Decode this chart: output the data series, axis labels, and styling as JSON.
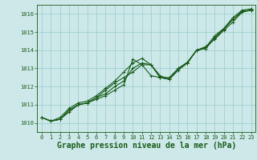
{
  "title": "Graphe pression niveau de la mer (hPa)",
  "bg_color": "#cce8e8",
  "grid_color": "#99cccc",
  "line_color": "#1a5c1a",
  "xlim": [
    -0.5,
    23.5
  ],
  "ylim": [
    1009.5,
    1016.5
  ],
  "yticks": [
    1010,
    1011,
    1012,
    1013,
    1014,
    1015,
    1016
  ],
  "xticks": [
    0,
    1,
    2,
    3,
    4,
    5,
    6,
    7,
    8,
    9,
    10,
    11,
    12,
    13,
    14,
    15,
    16,
    17,
    18,
    19,
    20,
    21,
    22,
    23
  ],
  "series": [
    [
      1010.3,
      1010.1,
      1010.2,
      1010.6,
      1011.0,
      1011.1,
      1011.3,
      1011.5,
      1011.8,
      1012.1,
      1013.5,
      1013.2,
      1012.6,
      1012.5,
      1012.4,
      1013.0,
      1013.3,
      1014.0,
      1014.1,
      1014.7,
      1015.2,
      1015.7,
      1016.15,
      1016.2
    ],
    [
      1010.3,
      1010.1,
      1010.2,
      1010.7,
      1011.0,
      1011.1,
      1011.4,
      1011.8,
      1012.2,
      1012.5,
      1012.8,
      1013.2,
      1013.2,
      1012.5,
      1012.5,
      1013.0,
      1013.3,
      1014.0,
      1014.15,
      1014.8,
      1015.2,
      1015.8,
      1016.2,
      1016.28
    ],
    [
      1010.3,
      1010.1,
      1010.3,
      1010.8,
      1011.1,
      1011.2,
      1011.5,
      1011.9,
      1012.3,
      1012.8,
      1013.3,
      1013.55,
      1013.2,
      1012.6,
      1012.4,
      1013.0,
      1013.35,
      1014.0,
      1014.2,
      1014.6,
      1015.1,
      1015.55,
      1016.1,
      1016.22
    ],
    [
      1010.3,
      1010.1,
      1010.2,
      1010.7,
      1011.0,
      1011.1,
      1011.4,
      1011.6,
      1012.0,
      1012.3,
      1013.0,
      1013.3,
      1013.2,
      1012.5,
      1012.4,
      1012.9,
      1013.3,
      1014.0,
      1014.1,
      1014.65,
      1015.15,
      1015.7,
      1016.1,
      1016.2
    ]
  ],
  "marker": "+",
  "markersize": 3.5,
  "linewidth": 0.8,
  "title_fontsize": 7,
  "tick_fontsize": 5
}
